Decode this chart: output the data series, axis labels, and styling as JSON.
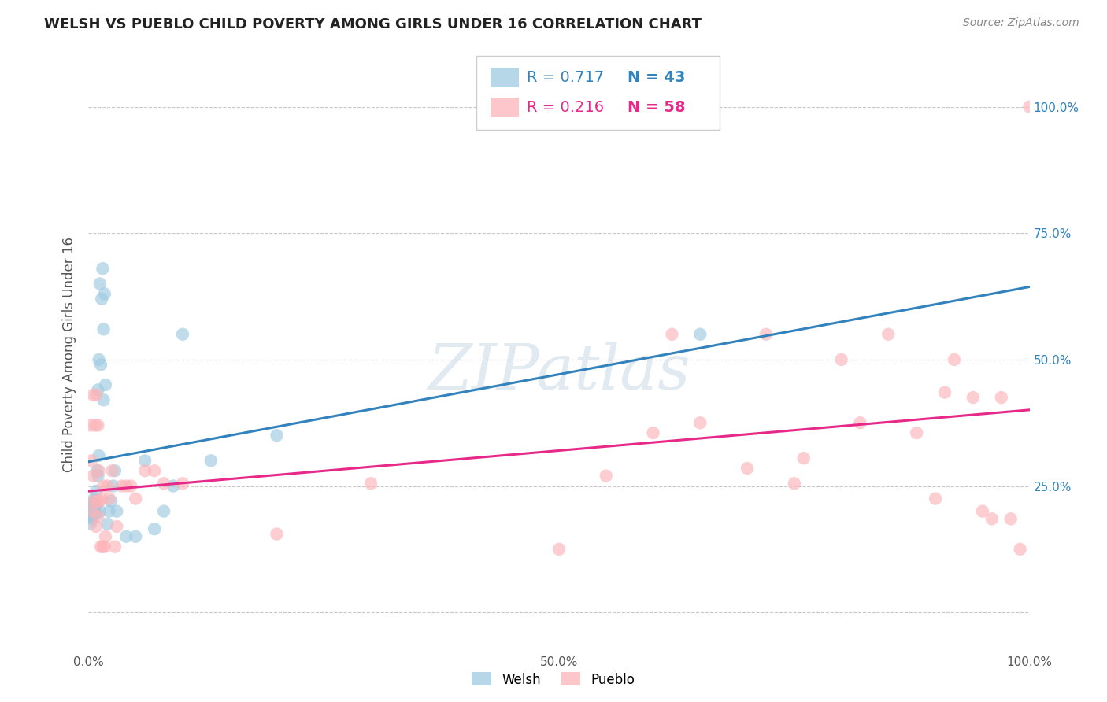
{
  "title": "WELSH VS PUEBLO CHILD POVERTY AMONG GIRLS UNDER 16 CORRELATION CHART",
  "source": "Source: ZipAtlas.com",
  "ylabel": "Child Poverty Among Girls Under 16",
  "welsh_R": 0.717,
  "welsh_N": 43,
  "pueblo_R": 0.216,
  "pueblo_N": 58,
  "welsh_color": "#9ecae1",
  "pueblo_color": "#fbb4b9",
  "welsh_line_color": "#3182bd",
  "pueblo_line_color": "#e7298a",
  "bg_color": "#ffffff",
  "grid_color": "#c8c8c8",
  "welsh_x": [
    0.002,
    0.003,
    0.004,
    0.004,
    0.005,
    0.005,
    0.006,
    0.006,
    0.007,
    0.007,
    0.008,
    0.008,
    0.009,
    0.009,
    0.01,
    0.01,
    0.011,
    0.011,
    0.012,
    0.012,
    0.013,
    0.014,
    0.015,
    0.016,
    0.016,
    0.017,
    0.018,
    0.02,
    0.022,
    0.024,
    0.026,
    0.028,
    0.03,
    0.04,
    0.05,
    0.06,
    0.07,
    0.08,
    0.09,
    0.1,
    0.13,
    0.2,
    0.65
  ],
  "welsh_y": [
    0.175,
    0.19,
    0.185,
    0.215,
    0.195,
    0.21,
    0.205,
    0.225,
    0.2,
    0.22,
    0.195,
    0.24,
    0.215,
    0.28,
    0.27,
    0.44,
    0.31,
    0.5,
    0.65,
    0.2,
    0.49,
    0.62,
    0.68,
    0.56,
    0.42,
    0.63,
    0.45,
    0.175,
    0.2,
    0.22,
    0.25,
    0.28,
    0.2,
    0.15,
    0.15,
    0.3,
    0.165,
    0.2,
    0.25,
    0.55,
    0.3,
    0.35,
    0.55
  ],
  "pueblo_x": [
    0.002,
    0.003,
    0.004,
    0.005,
    0.005,
    0.006,
    0.007,
    0.008,
    0.008,
    0.009,
    0.01,
    0.01,
    0.011,
    0.012,
    0.013,
    0.014,
    0.015,
    0.016,
    0.017,
    0.018,
    0.02,
    0.022,
    0.025,
    0.028,
    0.03,
    0.035,
    0.04,
    0.045,
    0.05,
    0.06,
    0.07,
    0.08,
    0.1,
    0.2,
    0.3,
    0.5,
    0.55,
    0.6,
    0.62,
    0.65,
    0.7,
    0.72,
    0.75,
    0.76,
    0.8,
    0.82,
    0.85,
    0.88,
    0.9,
    0.91,
    0.92,
    0.94,
    0.95,
    0.96,
    0.97,
    0.98,
    0.99,
    1.0
  ],
  "pueblo_y": [
    0.37,
    0.3,
    0.2,
    0.43,
    0.27,
    0.22,
    0.37,
    0.43,
    0.17,
    0.22,
    0.37,
    0.19,
    0.28,
    0.22,
    0.13,
    0.225,
    0.13,
    0.25,
    0.13,
    0.15,
    0.25,
    0.225,
    0.28,
    0.13,
    0.17,
    0.25,
    0.25,
    0.25,
    0.225,
    0.28,
    0.28,
    0.255,
    0.255,
    0.155,
    0.255,
    0.125,
    0.27,
    0.355,
    0.55,
    0.375,
    0.285,
    0.55,
    0.255,
    0.305,
    0.5,
    0.375,
    0.55,
    0.355,
    0.225,
    0.435,
    0.5,
    0.425,
    0.2,
    0.185,
    0.425,
    0.185,
    0.125,
    1.0
  ],
  "xlim": [
    0.0,
    1.0
  ],
  "ylim": [
    -0.08,
    1.1
  ],
  "ytick_positions": [
    0.0,
    0.25,
    0.5,
    0.75,
    1.0
  ],
  "left_ytick_labels": [
    "",
    "",
    "",
    "",
    ""
  ],
  "right_ytick_labels": [
    "",
    "25.0%",
    "50.0%",
    "75.0%",
    "100.0%"
  ],
  "xtick_positions": [
    0.0,
    0.1,
    0.2,
    0.3,
    0.4,
    0.5,
    0.6,
    0.7,
    0.8,
    0.9,
    1.0
  ],
  "xtick_labels": [
    "0.0%",
    "",
    "",
    "",
    "",
    "50.0%",
    "",
    "",
    "",
    "",
    "100.0%"
  ],
  "title_fontsize": 13,
  "axis_fontsize": 11,
  "legend_fontsize": 14
}
